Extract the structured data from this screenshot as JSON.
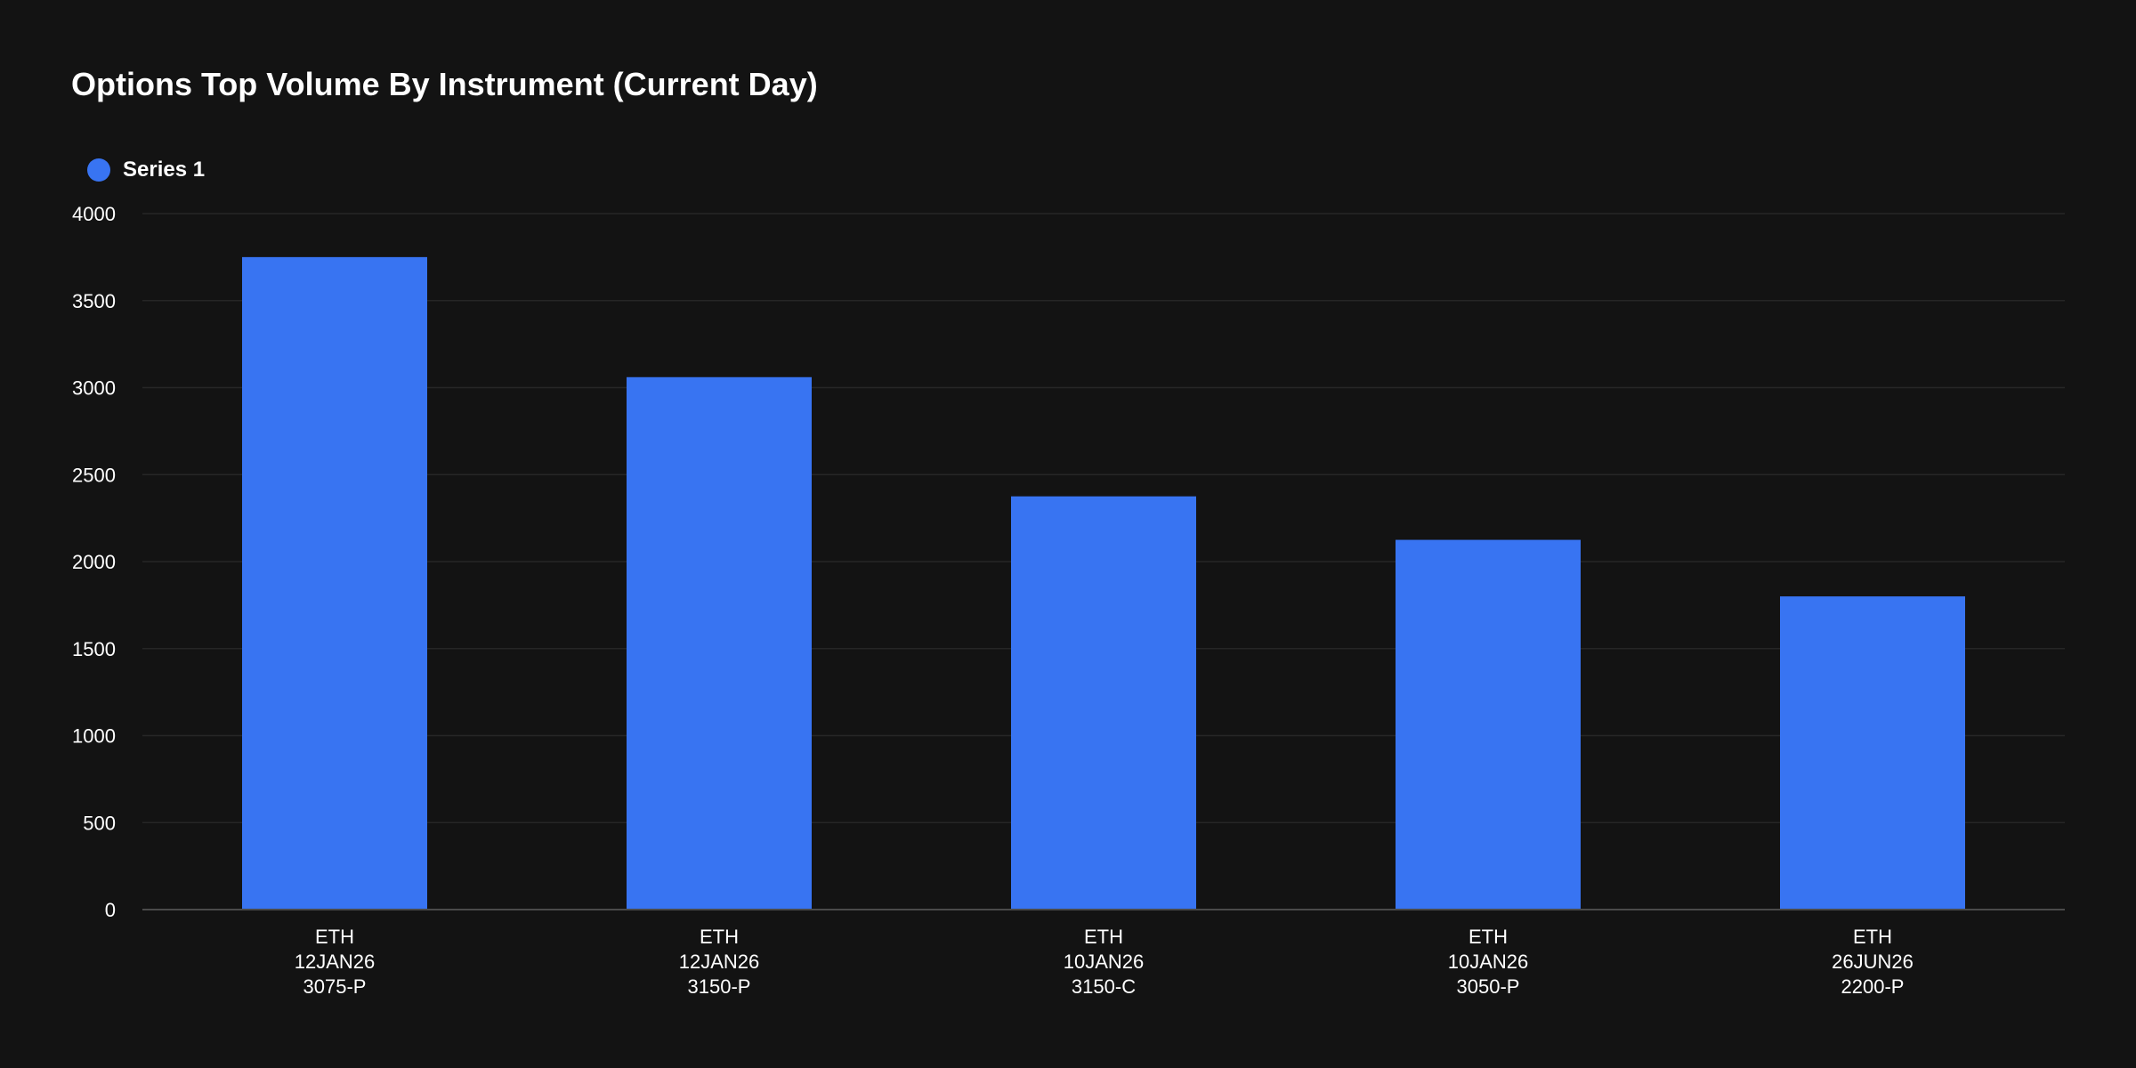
{
  "chart_data": {
    "type": "bar",
    "title": "Options Top Volume By Instrument (Current Day)",
    "categories": [
      [
        "ETH",
        "12JAN26",
        "3075-P"
      ],
      [
        "ETH",
        "12JAN26",
        "3150-P"
      ],
      [
        "ETH",
        "10JAN26",
        "3150-C"
      ],
      [
        "ETH",
        "10JAN26",
        "3050-P"
      ],
      [
        "ETH",
        "26JUN26",
        "2200-P"
      ]
    ],
    "series": [
      {
        "name": "Series 1",
        "color": "#3874f2",
        "values": [
          3750,
          3060,
          2375,
          2125,
          1800
        ]
      }
    ],
    "xlabel": "",
    "ylabel": "",
    "ylim": [
      0,
      4000
    ],
    "yticks": [
      "0",
      "500",
      "1000",
      "1500",
      "2000",
      "2500",
      "3000",
      "3500",
      "4000"
    ],
    "grid": true,
    "legend_position": "top-left"
  },
  "colors": {
    "background": "#131313",
    "grid": "#262626",
    "axis": "#4a4a4a",
    "text": "#ffffff"
  }
}
